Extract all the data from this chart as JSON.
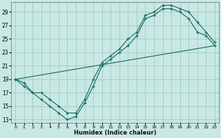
{
  "xlabel": "Humidex (Indice chaleur)",
  "bg_color": "#c8e8e4",
  "grid_color": "#a8ccc8",
  "line_color": "#1a6e62",
  "xlim": [
    -0.5,
    23.5
  ],
  "ylim": [
    12.5,
    30.5
  ],
  "xticks": [
    0,
    1,
    2,
    3,
    4,
    5,
    6,
    7,
    8,
    9,
    10,
    11,
    12,
    13,
    14,
    15,
    16,
    17,
    18,
    19,
    20,
    21,
    22,
    23
  ],
  "yticks": [
    13,
    15,
    17,
    19,
    21,
    23,
    25,
    27,
    29
  ],
  "curve1_x": [
    0,
    1,
    2,
    3,
    4,
    5,
    6,
    7,
    8,
    9,
    10,
    11,
    12,
    13,
    14,
    15,
    16,
    17,
    18,
    19,
    20,
    21,
    22,
    23
  ],
  "curve1_y": [
    19,
    18,
    17,
    16,
    15,
    14,
    13,
    13.5,
    15.5,
    18,
    21,
    22,
    23,
    24,
    25.5,
    28,
    28.5,
    29.5,
    29.5,
    29,
    28,
    26,
    25.5,
    24
  ],
  "curve2_x": [
    0,
    1,
    2,
    3,
    4,
    5,
    6,
    7,
    8,
    9,
    10,
    11,
    12,
    13,
    14,
    15,
    16,
    17,
    18,
    19,
    20,
    21,
    22,
    23
  ],
  "curve2_y": [
    19,
    18.5,
    17,
    17,
    16,
    15,
    14,
    14,
    16,
    19,
    21.5,
    22.5,
    23.5,
    25,
    26,
    28.5,
    29,
    30,
    30,
    29.5,
    29,
    27.5,
    26,
    24.5
  ],
  "line3_x": [
    0,
    23
  ],
  "line3_y": [
    19,
    24
  ]
}
